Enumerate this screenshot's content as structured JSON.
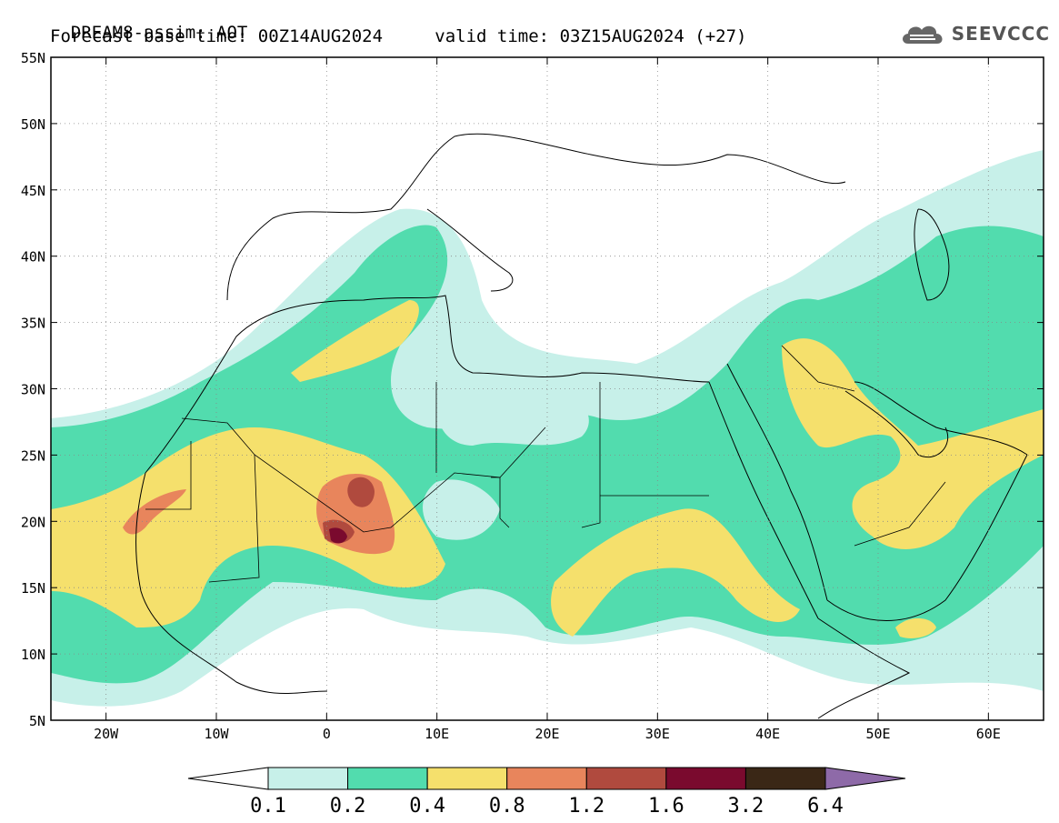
{
  "header": {
    "model_title": "DREAM8-assim: AOT",
    "base_time_label": "Forecast base time:",
    "base_time": "00Z14AUG2024",
    "valid_time_label": "valid time:",
    "valid_time": "03Z15AUG2024 (+27)"
  },
  "logo": {
    "text": "SEEVCCC",
    "icon": "cloud-logo-icon"
  },
  "map": {
    "lon_range": [
      -25,
      65
    ],
    "lat_range": [
      5,
      55
    ],
    "lat_ticks": [
      "55N",
      "50N",
      "45N",
      "40N",
      "35N",
      "30N",
      "25N",
      "20N",
      "15N",
      "10N",
      "5N"
    ],
    "lon_ticks": [
      "20W",
      "10W",
      "0",
      "10E",
      "20E",
      "30E",
      "40E",
      "50E",
      "60E"
    ]
  },
  "colorbar": {
    "labels": [
      "0.1",
      "0.2",
      "0.4",
      "0.8",
      "1.2",
      "1.6",
      "3.2",
      "6.4"
    ],
    "colors": [
      "#c7f0e9",
      "#52dcae",
      "#f5e06c",
      "#e8855c",
      "#b04a3e",
      "#7a0a2e",
      "#3a2716",
      "#8e6aa8"
    ]
  }
}
